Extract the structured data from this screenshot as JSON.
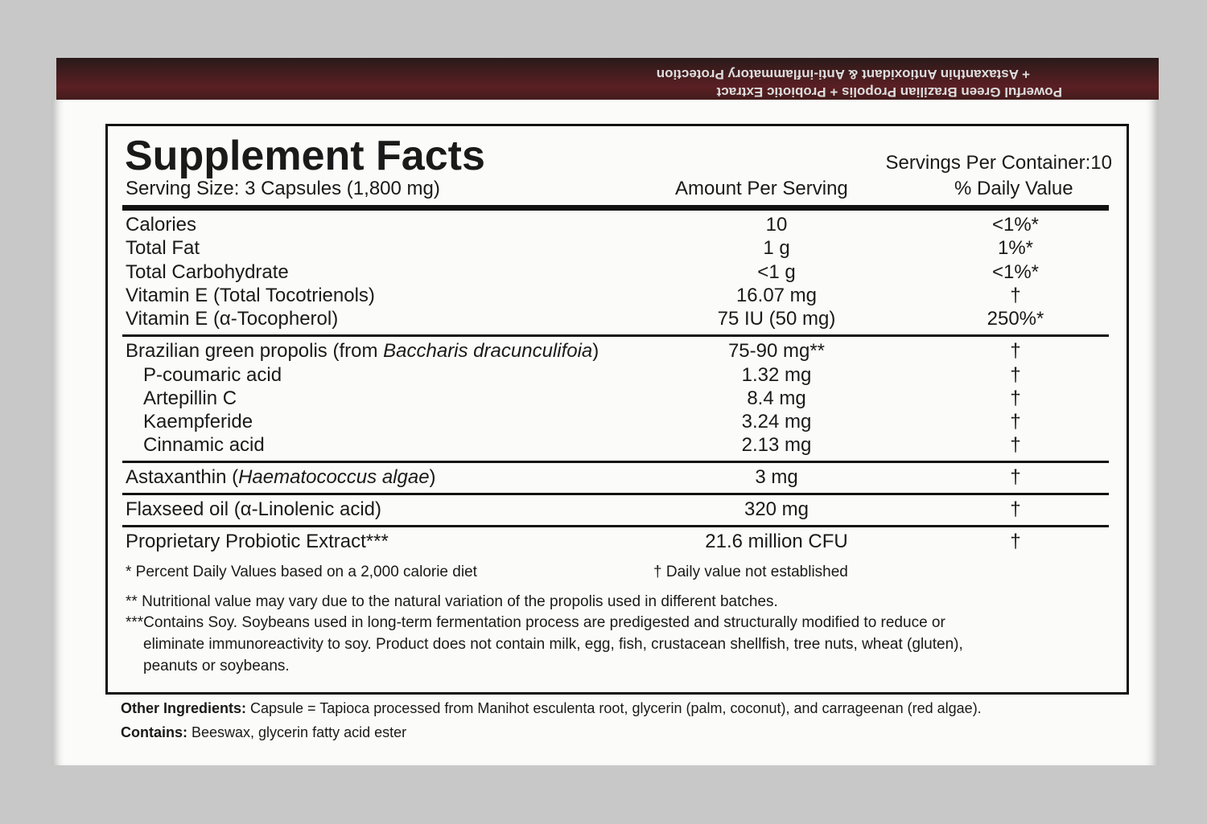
{
  "box_flap": {
    "line1": "Powerful Green Brazilian Propolis + Probiotic Extract",
    "line2": "+ Astaxanthin Antioxidant & Anti-inflammatory Protection"
  },
  "facts": {
    "title": "Supplement Facts",
    "servings_per_container": "Servings Per Container:10",
    "serving_size": "Serving Size: 3 Capsules (1,800 mg)",
    "col_amount": "Amount Per Serving",
    "col_dv": "% Daily Value",
    "sections": [
      [
        {
          "name": [
            "Calories"
          ],
          "amount": "10",
          "dv": "<1%*"
        },
        {
          "name": [
            "Total Fat"
          ],
          "amount": "1 g",
          "dv": "1%*"
        },
        {
          "name": [
            "Total Carbohydrate"
          ],
          "amount": "<1 g",
          "dv": "<1%*"
        },
        {
          "name": [
            "Vitamin E (Total Tocotrienols)"
          ],
          "amount": "16.07 mg",
          "dv": "†"
        },
        {
          "name": [
            "Vitamin E (α-Tocopherol)"
          ],
          "amount": "75 IU (50 mg)",
          "dv": "250%*"
        }
      ],
      [
        {
          "name": [
            "Brazilian green propolis (from ",
            "Baccharis dracunculifoia",
            ")"
          ],
          "amount": "75-90 mg**",
          "dv": "†",
          "components": [
            {
              "name": [
                "P-coumaric acid"
              ],
              "amount": "1.32 mg",
              "dv": "†"
            },
            {
              "name": [
                "Artepillin C"
              ],
              "amount": "8.4 mg",
              "dv": "†"
            },
            {
              "name": [
                "Kaempferide"
              ],
              "amount": "3.24 mg",
              "dv": "†"
            },
            {
              "name": [
                "Cinnamic acid"
              ],
              "amount": "2.13 mg",
              "dv": "†"
            }
          ]
        }
      ],
      [
        {
          "name": [
            "Astaxanthin (",
            "Haematococcus algae",
            ")"
          ],
          "amount": "3 mg",
          "dv": "†"
        }
      ],
      [
        {
          "name": [
            "Flaxseed oil (α-Linolenic acid)"
          ],
          "amount": "320 mg",
          "dv": "†"
        }
      ],
      [
        {
          "name": [
            "Proprietary Probiotic Extract***"
          ],
          "amount": "21.6 million CFU",
          "dv": "†"
        }
      ]
    ],
    "footnotes": {
      "dv_note": "*  Percent Daily Values based on a 2,000 calorie diet",
      "dagger_note": "† Daily value not established",
      "lines": [
        "** Nutritional value may vary due to the natural variation of the propolis used in different batches.",
        "***Contains Soy.  Soybeans used in long-term fermentation process are predigested and structurally modified to reduce or",
        "eliminate immunoreactivity to soy.  Product does not contain milk, egg, fish, crustacean shellfish, tree nuts, wheat (gluten),",
        "peanuts or soybeans."
      ]
    }
  },
  "other": {
    "other_label": "Other Ingredients:",
    "other_text": " Capsule = Tapioca processed from Manihot esculenta root, glycerin (palm, coconut), and carrageenan (red algae).",
    "contains_label": "Contains:",
    "contains_text": " Beeswax, glycerin fatty acid ester"
  }
}
